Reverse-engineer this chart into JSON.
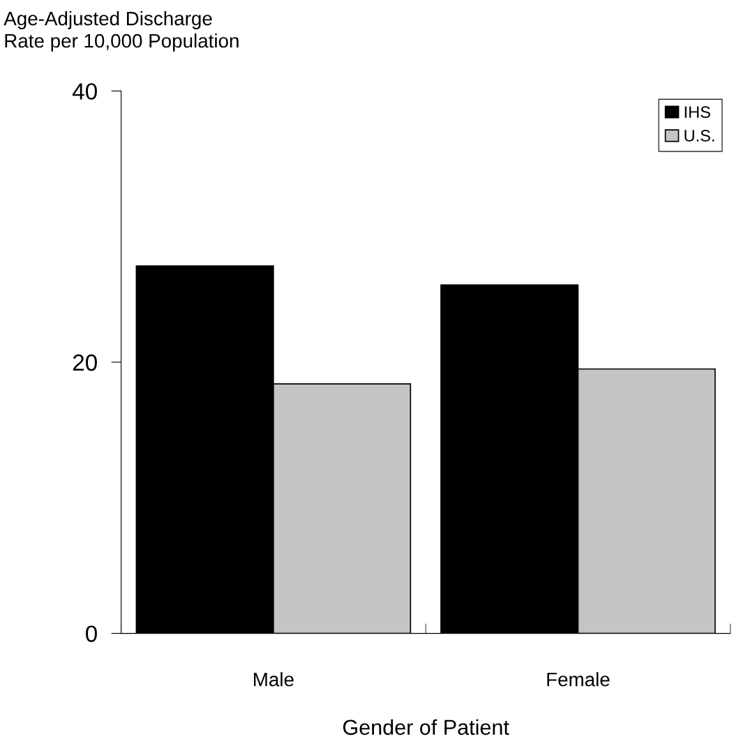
{
  "chart_data": {
    "type": "bar",
    "ylabel": "Age-Adjusted Discharge\nRate per 10,000 Population",
    "xlabel": "Gender of Patient",
    "categories": [
      "Male",
      "Female"
    ],
    "series": [
      {
        "name": "IHS",
        "color": "#000000",
        "values": [
          27.1,
          25.7
        ]
      },
      {
        "name": "U.S.",
        "color": "#c4c4c4",
        "values": [
          18.4,
          19.5
        ]
      }
    ],
    "ylim": [
      0,
      40
    ],
    "yticks": [
      0,
      20,
      40
    ],
    "grid": false,
    "legend": "top right"
  }
}
